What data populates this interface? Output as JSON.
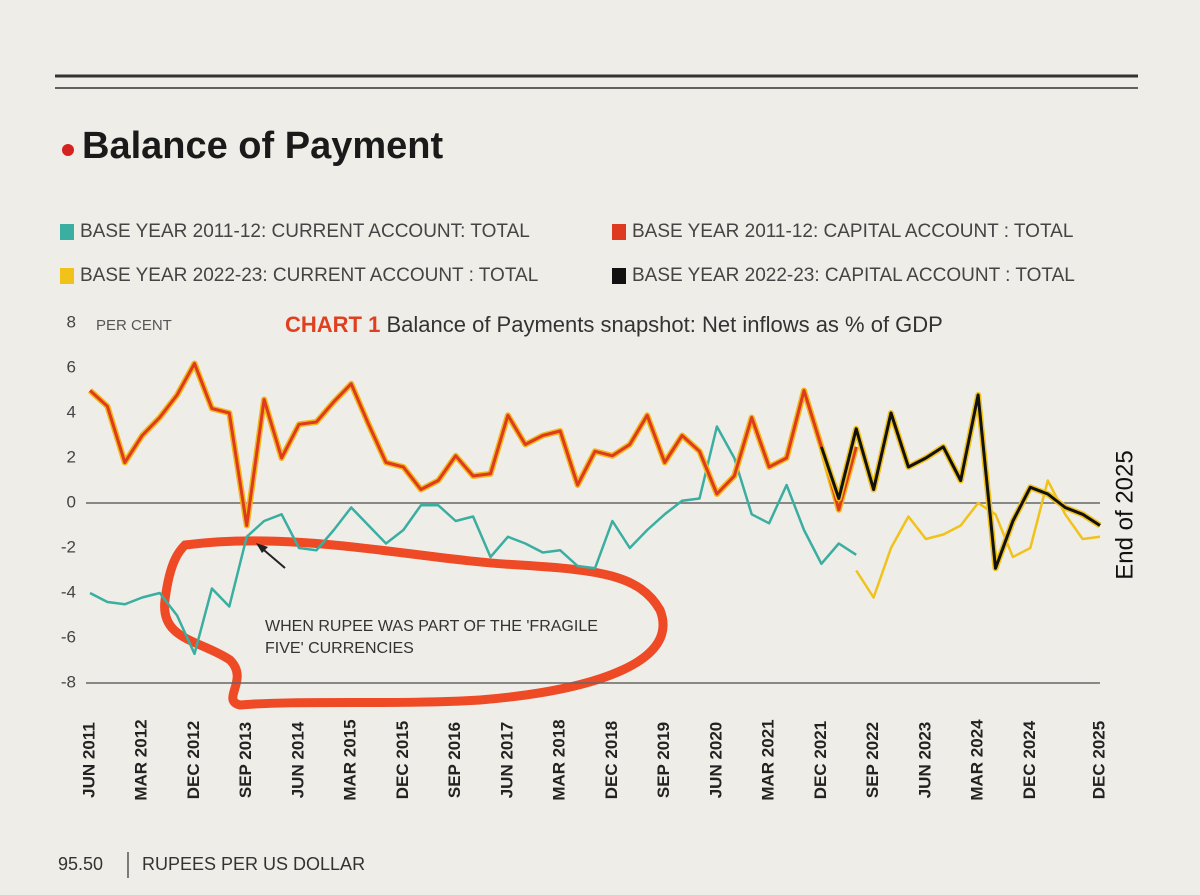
{
  "chart_data": {
    "type": "line",
    "title": "Balance of Payment",
    "chart_label": "CHART 1",
    "subtitle": "Balance of Payments snapshot: Net inflows as % of GDP",
    "y_unit_label": "PER CENT",
    "annotation": "WHEN RUPEE WAS PART OF THE 'FRAGILE FIVE' CURRENCIES",
    "side_note": "End of 2025",
    "footer_value": "95.50",
    "footer_label": "RUPEES PER US DOLLAR",
    "categories": [
      "JUN 2011",
      null,
      null,
      "MAR 2012",
      null,
      null,
      "DEC 2012",
      null,
      null,
      "SEP 2013",
      null,
      null,
      "JUN 2014",
      null,
      null,
      "MAR 2015",
      null,
      null,
      "DEC 2015",
      null,
      null,
      "SEP 2016",
      null,
      null,
      "JUN 2017",
      null,
      null,
      "MAR 2018",
      null,
      null,
      "DEC 2018",
      null,
      null,
      "SEP 2019",
      null,
      null,
      "JUN 2020",
      null,
      null,
      "MAR 2021",
      null,
      null,
      "DEC 2021",
      null,
      null,
      "SEP 2022",
      null,
      null,
      "JUN 2023",
      null,
      null,
      "MAR 2024",
      null,
      null,
      "DEC 2024",
      null,
      null,
      null,
      "DEC 2025"
    ],
    "series": [
      {
        "name": "BASE YEAR 2011-12: CURRENT ACCOUNT: TOTAL",
        "color": "#3aaea0",
        "values": [
          -4.0,
          -4.4,
          -4.5,
          -4.2,
          -4.0,
          -5.0,
          -6.7,
          -3.8,
          -4.6,
          -1.5,
          -0.8,
          -0.5,
          -2.0,
          -2.1,
          -1.2,
          -0.2,
          -1.0,
          -1.8,
          -1.2,
          -0.1,
          -0.1,
          -0.8,
          -0.6,
          -2.4,
          -1.5,
          -1.8,
          -2.2,
          -2.1,
          -2.8,
          -2.9,
          -0.8,
          -2.0,
          -1.2,
          -0.5,
          0.1,
          0.2,
          3.4,
          2.0,
          -0.5,
          -0.9,
          0.8,
          -1.2,
          -2.7,
          -1.8,
          -2.3,
          null,
          null,
          null,
          null,
          null,
          null,
          null,
          null,
          null,
          null,
          null,
          null,
          null,
          null
        ]
      },
      {
        "name": "BASE YEAR 2011-12: CAPITAL ACCOUNT : TOTAL",
        "color": "#de3a1f",
        "values": [
          5.0,
          4.3,
          1.8,
          3.0,
          3.8,
          4.8,
          6.2,
          4.2,
          4.0,
          -1.0,
          4.6,
          2.0,
          3.5,
          3.6,
          4.5,
          5.3,
          3.5,
          1.8,
          1.6,
          0.6,
          1.0,
          2.1,
          1.2,
          1.3,
          3.9,
          2.6,
          3.0,
          3.2,
          0.8,
          2.3,
          2.1,
          2.6,
          3.9,
          1.8,
          3.0,
          2.3,
          0.4,
          1.2,
          3.8,
          1.6,
          2.0,
          5.0,
          2.5,
          -0.3,
          2.5,
          null,
          null,
          null,
          null,
          null,
          null,
          null,
          null,
          null,
          null,
          null,
          null,
          null,
          null
        ]
      },
      {
        "name": "BASE YEAR 2022-23: CURRENT ACCOUNT : TOTAL",
        "color": "#f0c21a",
        "values": [
          null,
          null,
          null,
          null,
          null,
          null,
          null,
          null,
          null,
          null,
          null,
          null,
          null,
          null,
          null,
          null,
          null,
          null,
          null,
          null,
          null,
          null,
          null,
          null,
          null,
          null,
          null,
          null,
          null,
          null,
          null,
          null,
          null,
          null,
          null,
          null,
          null,
          null,
          null,
          null,
          null,
          null,
          null,
          null,
          -3.0,
          -4.2,
          -2.0,
          -0.6,
          -1.6,
          -1.4,
          -1.0,
          0.0,
          -0.5,
          -2.4,
          -2.0,
          1.0,
          -0.5,
          -1.6,
          -1.5
        ]
      },
      {
        "name": "BASE YEAR 2022-23: CAPITAL ACCOUNT : TOTAL",
        "color": "#111111",
        "values": [
          null,
          null,
          null,
          null,
          null,
          null,
          null,
          null,
          null,
          null,
          null,
          null,
          null,
          null,
          null,
          null,
          null,
          null,
          null,
          null,
          null,
          null,
          null,
          null,
          null,
          null,
          null,
          null,
          null,
          null,
          null,
          null,
          null,
          null,
          null,
          null,
          null,
          null,
          null,
          null,
          null,
          null,
          2.5,
          0.2,
          3.3,
          0.6,
          4.0,
          1.6,
          2.0,
          2.5,
          1.0,
          4.8,
          -2.9,
          -0.8,
          0.7,
          0.4,
          -0.2,
          -0.5,
          -1.0
        ]
      }
    ],
    "ylim": [
      -8,
      8
    ],
    "yticks": [
      8,
      6,
      4,
      2,
      0,
      -2,
      -4,
      -6,
      -8
    ],
    "grid": false
  }
}
